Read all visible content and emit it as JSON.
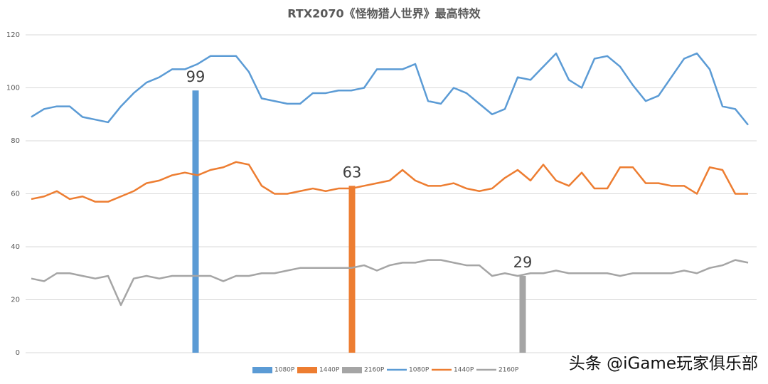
{
  "chart_data": {
    "type": "line",
    "title": "RTX2070《怪物猎人世界》最高特效",
    "categories": [
      null,
      null,
      null,
      null,
      null,
      null,
      null,
      null,
      null,
      null,
      null,
      null,
      null,
      null,
      null,
      null,
      null,
      null,
      null,
      null,
      null,
      null,
      null,
      null,
      null,
      null,
      null,
      null,
      null,
      null,
      null,
      null,
      null,
      null,
      null,
      null,
      null,
      null,
      null,
      null,
      null,
      null,
      null,
      null,
      null,
      null,
      null,
      null,
      null,
      null,
      null,
      null,
      null,
      null,
      null,
      null,
      null
    ],
    "series": [
      {
        "name": "1080P",
        "color": "#5b9bd5",
        "values": [
          89,
          92,
          93,
          93,
          89,
          88,
          87,
          93,
          98,
          102,
          104,
          107,
          107,
          109,
          112,
          112,
          112,
          106,
          96,
          95,
          94,
          94,
          98,
          98,
          99,
          99,
          100,
          107,
          107,
          107,
          109,
          95,
          94,
          100,
          98,
          94,
          90,
          92,
          104,
          103,
          108,
          113,
          103,
          100,
          111,
          112,
          108,
          101,
          95,
          97,
          104,
          111,
          113,
          107,
          93,
          92,
          86
        ]
      },
      {
        "name": "1440P",
        "color": "#ed7d31",
        "values": [
          58,
          59,
          61,
          58,
          59,
          57,
          57,
          59,
          61,
          64,
          65,
          67,
          68,
          67,
          69,
          70,
          72,
          71,
          63,
          60,
          60,
          61,
          62,
          61,
          62,
          62,
          63,
          64,
          65,
          69,
          65,
          63,
          63,
          64,
          62,
          61,
          62,
          66,
          69,
          65,
          71,
          65,
          63,
          68,
          62,
          62,
          70,
          70,
          64,
          64,
          63,
          63,
          60,
          70,
          69,
          60,
          60
        ]
      },
      {
        "name": "2160P",
        "color": "#a5a5a5",
        "values": [
          28,
          27,
          30,
          30,
          29,
          28,
          29,
          18,
          28,
          29,
          28,
          29,
          29,
          29,
          29,
          27,
          29,
          29,
          30,
          30,
          31,
          32,
          32,
          32,
          32,
          32,
          33,
          31,
          33,
          34,
          34,
          35,
          35,
          34,
          33,
          33,
          29,
          30,
          29,
          30,
          30,
          31,
          30,
          30,
          30,
          30,
          29,
          30,
          30,
          30,
          30,
          31,
          30,
          32,
          33,
          35,
          34
        ]
      }
    ],
    "bars": [
      {
        "name": "1080P",
        "color": "#5b9bd5",
        "value": 99
      },
      {
        "name": "1440P",
        "color": "#ed7d31",
        "value": 63
      },
      {
        "name": "2160P",
        "color": "#a5a5a5",
        "value": 29
      }
    ],
    "ylim": [
      0,
      120
    ],
    "yticks": [
      0,
      20,
      40,
      60,
      80,
      100,
      120
    ],
    "grid": true,
    "legend": "bottom",
    "watermark": "头条 @iGame玩家俱乐部"
  }
}
